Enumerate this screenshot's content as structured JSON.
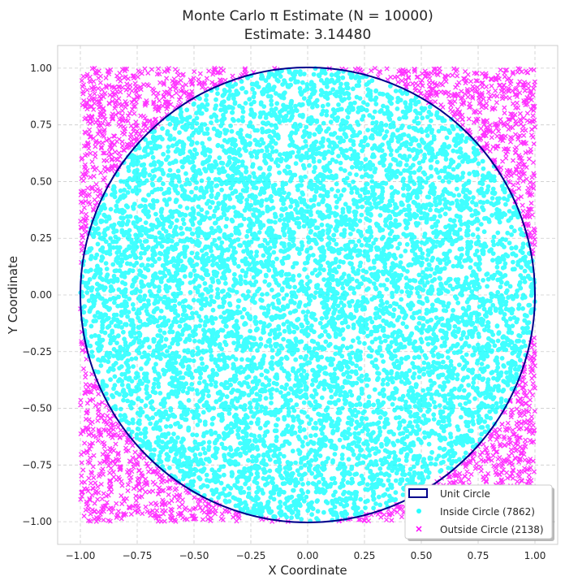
{
  "chart_data": {
    "type": "scatter",
    "title_line1": "Monte Carlo π Estimate (N = 10000)",
    "title_line2": "Estimate: 3.14480",
    "xlabel": "X Coordinate",
    "ylabel": "Y Coordinate",
    "xlim": [
      -1.1,
      1.1
    ],
    "ylim": [
      -1.1,
      1.1
    ],
    "xticks": [
      -1.0,
      -0.75,
      -0.5,
      -0.25,
      0.0,
      0.25,
      0.5,
      0.75,
      1.0
    ],
    "yticks": [
      -1.0,
      -0.75,
      -0.5,
      -0.25,
      0.0,
      0.25,
      0.5,
      0.75,
      1.0
    ],
    "xtick_labels": [
      "−1.00",
      "−0.75",
      "−0.50",
      "−0.25",
      "0.00",
      "0.25",
      "0.50",
      "0.75",
      "1.00"
    ],
    "ytick_labels": [
      "−1.00",
      "−0.75",
      "−0.50",
      "−0.25",
      "0.00",
      "0.25",
      "0.50",
      "0.75",
      "1.00"
    ],
    "grid": true,
    "legend_position": "lower-right",
    "sample_points": 10000,
    "series": [
      {
        "name": "Unit Circle",
        "kind": "circle",
        "center": [
          0,
          0
        ],
        "radius": 1,
        "color": "#00008b"
      },
      {
        "name": "Inside Circle (7862)",
        "kind": "points",
        "count": 7862,
        "marker": "circle",
        "color": "#00ffff"
      },
      {
        "name": "Outside Circle (2138)",
        "kind": "points",
        "count": 2138,
        "marker": "x",
        "color": "#ff00ff"
      }
    ]
  }
}
